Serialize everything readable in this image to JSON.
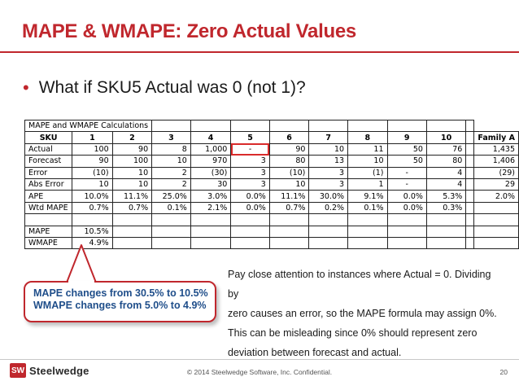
{
  "slide": {
    "title": "MAPE & WMAPE:  Zero Actual Values",
    "bullet": "What if SKU5 Actual was 0 (not 1)?"
  },
  "table": {
    "caption": "MAPE and WMAPE Calculations",
    "headers": [
      "SKU",
      "1",
      "2",
      "3",
      "4",
      "5",
      "6",
      "7",
      "8",
      "9",
      "10",
      "Family A"
    ],
    "rows": [
      {
        "label": "Actual",
        "cells": [
          "100",
          "90",
          "8",
          "1,000",
          "-",
          "90",
          "10",
          "11",
          "50",
          "76",
          "1,435"
        ]
      },
      {
        "label": "Forecast",
        "cells": [
          "90",
          "100",
          "10",
          "970",
          "3",
          "80",
          "13",
          "10",
          "50",
          "80",
          "1,406"
        ]
      },
      {
        "label": "Error",
        "cells": [
          "(10)",
          "10",
          "2",
          "(30)",
          "3",
          "(10)",
          "3",
          "(1)",
          "-",
          "4",
          "(29)"
        ]
      },
      {
        "label": "Abs Error",
        "cells": [
          "10",
          "10",
          "2",
          "30",
          "3",
          "10",
          "3",
          "1",
          "-",
          "4",
          "29"
        ]
      },
      {
        "label": "APE",
        "cells": [
          "10.0%",
          "11.1%",
          "25.0%",
          "3.0%",
          "0.0%",
          "11.1%",
          "30.0%",
          "9.1%",
          "0.0%",
          "5.3%",
          "2.0%"
        ]
      },
      {
        "label": "Wtd MAPE",
        "cells": [
          "0.7%",
          "0.7%",
          "0.1%",
          "2.1%",
          "0.0%",
          "0.7%",
          "0.2%",
          "0.1%",
          "0.0%",
          "0.3%",
          ""
        ]
      }
    ],
    "summary": [
      {
        "label": "MAPE",
        "value": "10.5%"
      },
      {
        "label": "WMAPE",
        "value": "4.9%"
      }
    ]
  },
  "callout": {
    "line1": "MAPE changes from 30.5% to 10.5%",
    "line2": "WMAPE changes from 5.0% to 4.9%"
  },
  "note": {
    "line1": "Pay close attention to instances where Actual = 0.  Dividing by",
    "line2": "zero causes an error, so the MAPE formula may assign 0%.",
    "line3": "This can be misleading since 0% should represent  zero",
    "line4": "deviation between forecast and actual."
  },
  "footer": {
    "logo_mark": "SW",
    "logo_text": "Steelwedge",
    "copyright": "© 2014 Steelwedge Software, Inc. Confidential.",
    "page": "20"
  },
  "colors": {
    "accent": "#c0272d",
    "callout_text": "#1f4e8a"
  }
}
